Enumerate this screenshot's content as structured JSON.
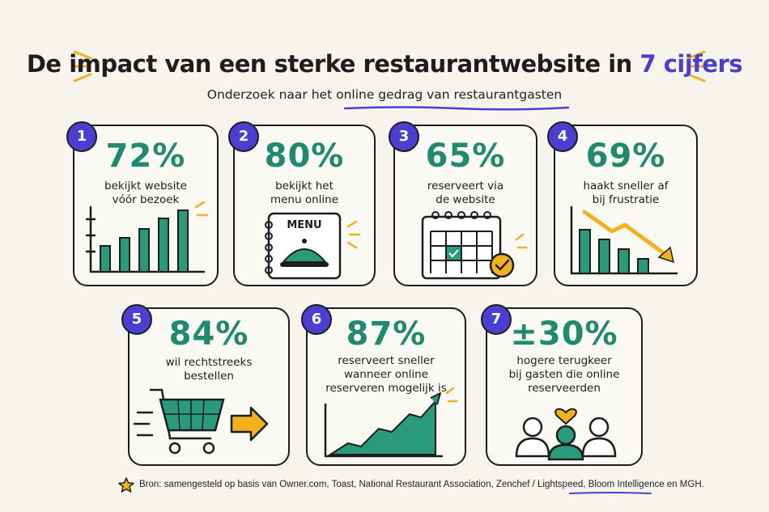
{
  "header": {
    "title_main": "De impact van een sterke restaurantwebsite in",
    "title_highlight": "7 cijfers",
    "subtitle": "Onderzoek naar het online gedrag van restaurantgasten"
  },
  "colors": {
    "accent_purple": "#4a3fd1",
    "accent_green": "#1f8a6d",
    "accent_yellow": "#f3b21b",
    "outline": "#1d1d1f"
  },
  "stats": [
    {
      "number": "1",
      "value": "72%",
      "desc_line1": "bekijkt website",
      "desc_line2": "vóór bezoek",
      "icon": "bar-chart-icon"
    },
    {
      "number": "2",
      "value": "80%",
      "desc_line1": "bekijkt het",
      "desc_line2": "menu online",
      "icon": "menu-book-icon",
      "menu_label": "MENU"
    },
    {
      "number": "3",
      "value": "65%",
      "desc_line1": "reserveert via",
      "desc_line2": "de website",
      "icon": "calendar-check-icon"
    },
    {
      "number": "4",
      "value": "69%",
      "desc_line1": "haakt sneller af",
      "desc_line2": "bij frustratie",
      "icon": "declining-chart-icon"
    },
    {
      "number": "5",
      "value": "84%",
      "desc_line1": "wil rechtstreeks",
      "desc_line2": "bestellen",
      "icon": "shopping-cart-icon"
    },
    {
      "number": "6",
      "value": "87%",
      "desc_line1": "reserveert sneller",
      "desc_line2": "wanneer online",
      "desc_line3": "reserveren mogelijk is",
      "icon": "rising-area-chart-icon"
    },
    {
      "number": "7",
      "value": "±30%",
      "desc_line1": "hogere terugkeer",
      "desc_line2": "bij gasten die online",
      "desc_line3": "reserveerden",
      "icon": "people-heart-icon"
    }
  ],
  "footer": {
    "source": "Bron: samengesteld op basis van Owner.com, Toast, National Restaurant Association, Zenchef / Lightspeed, Bloom Intelligence en MGH."
  }
}
